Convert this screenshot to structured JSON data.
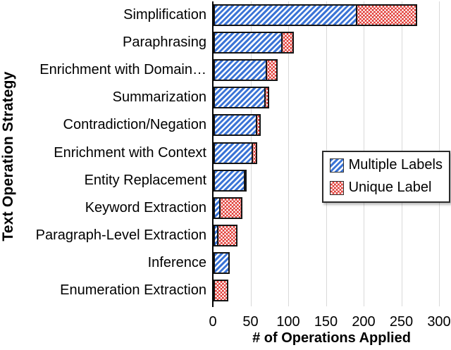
{
  "chart_data": {
    "type": "bar",
    "orientation": "horizontal-stacked",
    "title": "",
    "xlabel": "# of Operations Applied",
    "ylabel": "Text Operation Strategy",
    "xlim": [
      0,
      300
    ],
    "xticks": [
      0,
      50,
      100,
      150,
      200,
      250,
      300
    ],
    "grid": "vertical light-gray lines, no top/right border",
    "legend_position": "inside-right-middle",
    "categories": [
      "Simplification",
      "Paraphrasing",
      "Enrichment with Domain…",
      "Summarization",
      "Contradiction/Negation",
      "Enrichment with Context",
      "Entity Replacement",
      "Keyword Extraction",
      "Paragraph-Level Extraction",
      "Inference",
      "Enumeration Extraction"
    ],
    "series": [
      {
        "name": "Multiple Labels",
        "color": "#3b74d6",
        "pattern": "diagonal-stripe",
        "values": [
          187,
          88,
          67,
          65,
          54,
          49,
          38,
          6,
          3,
          18,
          0
        ]
      },
      {
        "name": "Unique Label",
        "color": "#e2413b",
        "pattern": "dot-grid",
        "values": [
          79,
          15,
          14,
          5,
          5,
          5,
          2,
          29,
          25,
          0,
          16
        ]
      }
    ],
    "colors": {
      "gridline": "#d9d9d9",
      "axis_line": "#000000",
      "bar_border": "#151515",
      "background": "#ffffff"
    }
  }
}
